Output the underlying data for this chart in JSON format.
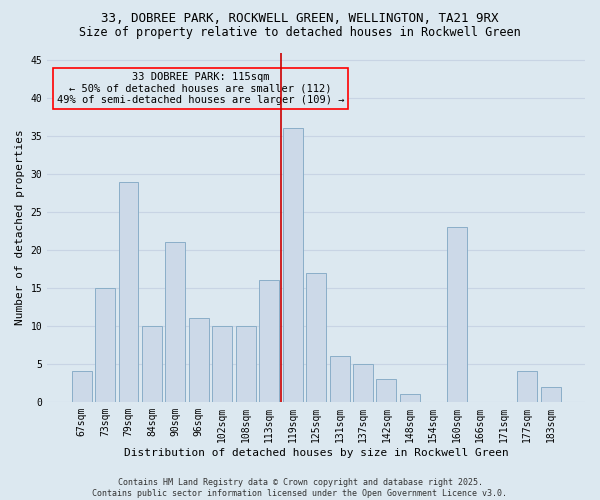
{
  "title1": "33, DOBREE PARK, ROCKWELL GREEN, WELLINGTON, TA21 9RX",
  "title2": "Size of property relative to detached houses in Rockwell Green",
  "xlabel": "Distribution of detached houses by size in Rockwell Green",
  "ylabel": "Number of detached properties",
  "categories": [
    "67sqm",
    "73sqm",
    "79sqm",
    "84sqm",
    "90sqm",
    "96sqm",
    "102sqm",
    "108sqm",
    "113sqm",
    "119sqm",
    "125sqm",
    "131sqm",
    "137sqm",
    "142sqm",
    "148sqm",
    "154sqm",
    "160sqm",
    "166sqm",
    "171sqm",
    "177sqm",
    "183sqm"
  ],
  "values": [
    4,
    15,
    29,
    10,
    21,
    11,
    10,
    10,
    16,
    36,
    17,
    6,
    5,
    3,
    1,
    0,
    23,
    0,
    0,
    4,
    2
  ],
  "bar_color": "#ccd9e8",
  "bar_edgecolor": "#8aaec8",
  "vline_x": 8.5,
  "vline_color": "#cc0000",
  "annotation_text": "33 DOBREE PARK: 115sqm\n← 50% of detached houses are smaller (112)\n49% of semi-detached houses are larger (109) →",
  "ylim": [
    0,
    46
  ],
  "yticks": [
    0,
    5,
    10,
    15,
    20,
    25,
    30,
    35,
    40,
    45
  ],
  "grid_color": "#c8d4e4",
  "bg_color": "#dce8f0",
  "footer": "Contains HM Land Registry data © Crown copyright and database right 2025.\nContains public sector information licensed under the Open Government Licence v3.0.",
  "title_fontsize": 9,
  "subtitle_fontsize": 8.5,
  "axis_label_fontsize": 8,
  "tick_fontsize": 7,
  "annotation_fontsize": 7.5,
  "footer_fontsize": 6
}
